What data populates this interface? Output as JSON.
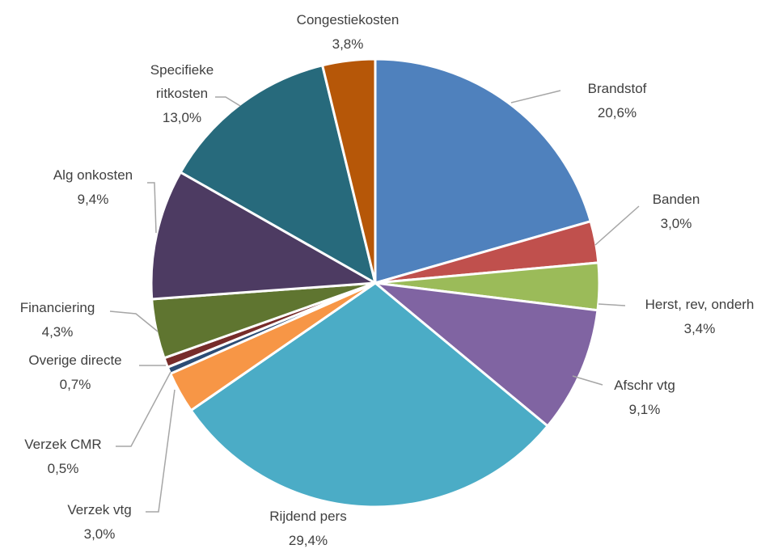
{
  "chart_data": {
    "type": "pie",
    "title": "",
    "categories": [
      "Brandstof",
      "Banden",
      "Herst, rev, onderh",
      "Afschr vtg",
      "Rijdend pers",
      "Verzek vtg",
      "Verzek CMR",
      "Overige directe",
      "Financiering",
      "Alg onkosten",
      "Specifieke ritkosten",
      "Congestiekosten"
    ],
    "values": [
      20.6,
      3.0,
      3.4,
      9.1,
      29.4,
      3.0,
      0.5,
      0.7,
      4.3,
      9.4,
      13.0,
      3.8
    ],
    "value_labels": [
      "20,6%",
      "3,0%",
      "3,4%",
      "9,1%",
      "29,4%",
      "3,0%",
      "0,5%",
      "0,7%",
      "4,3%",
      "9,4%",
      "13,0%",
      "3,8%"
    ],
    "start_angle_deg": 0,
    "direction": "clockwise",
    "legend": "none",
    "colors": [
      "#4f81bd",
      "#c0504d",
      "#9bbb59",
      "#8064a2",
      "#4bacc6",
      "#f79646",
      "#2c4d75",
      "#772c2a",
      "#5f7530",
      "#4d3b62",
      "#276a7c",
      "#b65708"
    ]
  }
}
